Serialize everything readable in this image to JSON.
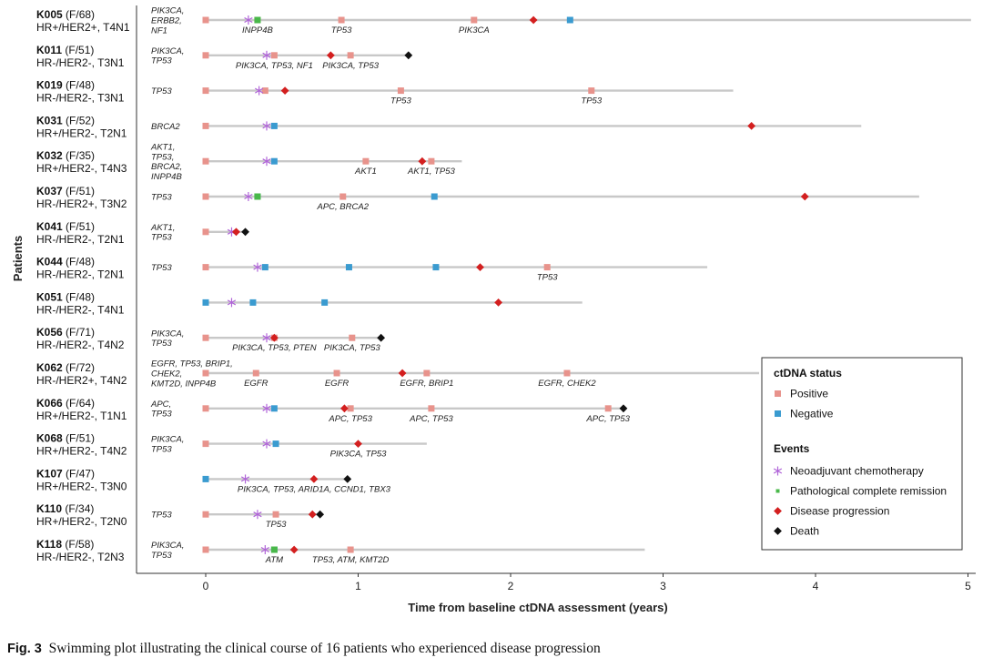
{
  "chart_data": {
    "type": "swimmer",
    "xlabel": "Time from baseline ctDNA assessment (years)",
    "ylabel": "Patients",
    "xlim": [
      -0.45,
      5.05
    ],
    "xticks": [
      0,
      1,
      2,
      3,
      4,
      5
    ],
    "legend": {
      "placement": "bottom-right",
      "status_title": "ctDNA status",
      "status_items": [
        {
          "label": "Positive",
          "color": "#e8938c"
        },
        {
          "label": "Negative",
          "color": "#3a9bd0"
        }
      ],
      "events_title": "Events",
      "event_items": [
        {
          "label": "Neoadjuvant chemotherapy",
          "kind": "chemo",
          "color": "#b064d8"
        },
        {
          "label": "Pathological complete remission",
          "kind": "pcr",
          "color": "#49b84a"
        },
        {
          "label": "Disease progression",
          "kind": "progression",
          "color": "#d31f1f"
        },
        {
          "label": "Death",
          "kind": "death",
          "color": "#111111"
        }
      ]
    },
    "patients": [
      {
        "id": "K005",
        "info": "(F/68)",
        "subtype": "HR+/HER2+, T4N1",
        "end": 5.02,
        "baseline_genes": [
          "PIK3CA,",
          "ERBB2,",
          "NF1"
        ],
        "samples": [
          {
            "t": 0,
            "s": "pos"
          },
          {
            "t": 0.34,
            "s": "pos",
            "label": "INPP4B"
          },
          {
            "t": 0.89,
            "s": "pos",
            "label": "TP53"
          },
          {
            "t": 1.76,
            "s": "pos",
            "label": "PIK3CA"
          },
          {
            "t": 2.39,
            "s": "neg"
          }
        ],
        "events": [
          {
            "t": 0.28,
            "e": "chemo"
          },
          {
            "t": 0.34,
            "e": "pcr"
          },
          {
            "t": 2.15,
            "e": "progression"
          }
        ]
      },
      {
        "id": "K011",
        "info": "(F/51)",
        "subtype": "HR-/HER2-, T3N1",
        "end": 1.33,
        "baseline_genes": [
          "PIK3CA,",
          "TP53"
        ],
        "samples": [
          {
            "t": 0,
            "s": "pos"
          },
          {
            "t": 0.45,
            "s": "pos",
            "label": "PIK3CA, TP53, NF1"
          },
          {
            "t": 0.95,
            "s": "pos",
            "label": "PIK3CA, TP53"
          }
        ],
        "events": [
          {
            "t": 0.4,
            "e": "chemo"
          },
          {
            "t": 0.82,
            "e": "progression"
          },
          {
            "t": 1.33,
            "e": "death"
          }
        ]
      },
      {
        "id": "K019",
        "info": "(F/48)",
        "subtype": "HR-/HER2-, T3N1",
        "end": 3.46,
        "baseline_genes": [
          "TP53"
        ],
        "samples": [
          {
            "t": 0,
            "s": "pos"
          },
          {
            "t": 0.39,
            "s": "pos"
          },
          {
            "t": 1.28,
            "s": "pos",
            "label": "TP53"
          },
          {
            "t": 2.53,
            "s": "pos",
            "label": "TP53"
          }
        ],
        "events": [
          {
            "t": 0.35,
            "e": "chemo"
          },
          {
            "t": 0.52,
            "e": "progression"
          }
        ]
      },
      {
        "id": "K031",
        "info": "(F/52)",
        "subtype": "HR+/HER2-, T2N1",
        "end": 4.3,
        "baseline_genes": [
          "BRCA2"
        ],
        "samples": [
          {
            "t": 0,
            "s": "pos"
          },
          {
            "t": 0.45,
            "s": "neg"
          }
        ],
        "events": [
          {
            "t": 0.4,
            "e": "chemo"
          },
          {
            "t": 3.58,
            "e": "progression"
          }
        ]
      },
      {
        "id": "K032",
        "info": "(F/35)",
        "subtype": "HR+/HER2-, T4N3",
        "end": 1.68,
        "baseline_genes": [
          "AKT1,",
          "TP53,",
          "BRCA2,",
          "INPP4B"
        ],
        "samples": [
          {
            "t": 0,
            "s": "pos"
          },
          {
            "t": 0.45,
            "s": "neg"
          },
          {
            "t": 1.05,
            "s": "pos",
            "label": "AKT1"
          },
          {
            "t": 1.48,
            "s": "pos",
            "label": "AKT1, TP53"
          }
        ],
        "events": [
          {
            "t": 0.4,
            "e": "chemo"
          },
          {
            "t": 1.42,
            "e": "progression"
          }
        ]
      },
      {
        "id": "K037",
        "info": "(F/51)",
        "subtype": "HR-/HER2+, T3N2",
        "end": 4.68,
        "baseline_genes": [
          "TP53"
        ],
        "samples": [
          {
            "t": 0,
            "s": "pos"
          },
          {
            "t": 0.34,
            "s": "neg"
          },
          {
            "t": 0.9,
            "s": "pos",
            "label": "APC, BRCA2"
          },
          {
            "t": 1.5,
            "s": "neg"
          }
        ],
        "events": [
          {
            "t": 0.28,
            "e": "chemo"
          },
          {
            "t": 0.34,
            "e": "pcr"
          },
          {
            "t": 3.93,
            "e": "progression"
          }
        ]
      },
      {
        "id": "K041",
        "info": "(F/51)",
        "subtype": "HR-/HER2-, T2N1",
        "end": 0.26,
        "baseline_genes": [
          "AKT1,",
          "TP53"
        ],
        "samples": [
          {
            "t": 0,
            "s": "pos"
          }
        ],
        "events": [
          {
            "t": 0.17,
            "e": "chemo"
          },
          {
            "t": 0.2,
            "e": "progression"
          },
          {
            "t": 0.26,
            "e": "death"
          }
        ]
      },
      {
        "id": "K044",
        "info": "(F/48)",
        "subtype": "HR-/HER2-, T2N1",
        "end": 3.29,
        "baseline_genes": [
          "TP53"
        ],
        "samples": [
          {
            "t": 0,
            "s": "pos"
          },
          {
            "t": 0.39,
            "s": "neg"
          },
          {
            "t": 0.94,
            "s": "neg"
          },
          {
            "t": 1.51,
            "s": "neg"
          },
          {
            "t": 2.24,
            "s": "pos",
            "label": "TP53"
          }
        ],
        "events": [
          {
            "t": 0.34,
            "e": "chemo"
          },
          {
            "t": 1.8,
            "e": "progression"
          }
        ]
      },
      {
        "id": "K051",
        "info": "(F/48)",
        "subtype": "HR-/HER2-, T4N1",
        "end": 2.47,
        "baseline_genes": [],
        "samples": [
          {
            "t": 0,
            "s": "neg"
          },
          {
            "t": 0.31,
            "s": "neg"
          },
          {
            "t": 0.78,
            "s": "neg"
          }
        ],
        "events": [
          {
            "t": 0.17,
            "e": "chemo"
          },
          {
            "t": 1.92,
            "e": "progression"
          }
        ]
      },
      {
        "id": "K056",
        "info": "(F/71)",
        "subtype": "HR-/HER2-, T4N2",
        "end": 1.15,
        "baseline_genes": [
          "PIK3CA,",
          "TP53"
        ],
        "samples": [
          {
            "t": 0,
            "s": "pos"
          },
          {
            "t": 0.45,
            "s": "pos",
            "label": "PIK3CA, TP53, PTEN"
          },
          {
            "t": 0.96,
            "s": "pos",
            "label": "PIK3CA, TP53"
          }
        ],
        "events": [
          {
            "t": 0.4,
            "e": "chemo"
          },
          {
            "t": 0.45,
            "e": "progression"
          },
          {
            "t": 1.15,
            "e": "death"
          }
        ]
      },
      {
        "id": "K062",
        "info": "(F/72)",
        "subtype": "HR-/HER2+, T4N2",
        "end": 3.63,
        "baseline_genes": [
          "EGFR, TP53, BRIP1,",
          "CHEK2,",
          "KMT2D, INPP4B"
        ],
        "samples": [
          {
            "t": 0,
            "s": "pos"
          },
          {
            "t": 0.33,
            "s": "pos",
            "label": "EGFR"
          },
          {
            "t": 0.86,
            "s": "pos",
            "label": "EGFR"
          },
          {
            "t": 1.45,
            "s": "pos",
            "label": "EGFR, BRIP1"
          },
          {
            "t": 2.37,
            "s": "pos",
            "label": "EGFR, CHEK2"
          }
        ],
        "events": [
          {
            "t": 1.29,
            "e": "progression"
          }
        ]
      },
      {
        "id": "K066",
        "info": "(F/64)",
        "subtype": "HR+/HER2-, T1N1",
        "end": 2.75,
        "baseline_genes": [
          "APC,",
          "TP53"
        ],
        "samples": [
          {
            "t": 0,
            "s": "pos"
          },
          {
            "t": 0.45,
            "s": "neg"
          },
          {
            "t": 0.95,
            "s": "pos",
            "label": "APC, TP53"
          },
          {
            "t": 1.48,
            "s": "pos",
            "label": "APC, TP53"
          },
          {
            "t": 2.64,
            "s": "pos",
            "label": "APC, TP53"
          }
        ],
        "events": [
          {
            "t": 0.4,
            "e": "chemo"
          },
          {
            "t": 0.91,
            "e": "progression"
          },
          {
            "t": 2.74,
            "e": "death"
          }
        ]
      },
      {
        "id": "K068",
        "info": "(F/51)",
        "subtype": "HR+/HER2-, T4N2",
        "end": 1.45,
        "baseline_genes": [
          "PIK3CA,",
          "TP53"
        ],
        "samples": [
          {
            "t": 0,
            "s": "pos"
          },
          {
            "t": 0.46,
            "s": "neg"
          }
        ],
        "events": [
          {
            "t": 0.4,
            "e": "chemo"
          },
          {
            "t": 1.0,
            "e": "progression",
            "label": "PIK3CA, TP53"
          }
        ]
      },
      {
        "id": "K107",
        "info": "(F/47)",
        "subtype": "HR+/HER2-, T3N0",
        "end": 0.93,
        "baseline_genes": [],
        "samples": [
          {
            "t": 0,
            "s": "neg"
          }
        ],
        "events": [
          {
            "t": 0.26,
            "e": "chemo"
          },
          {
            "t": 0.71,
            "e": "progression",
            "label": "PIK3CA, TP53, ARID1A, CCND1, TBX3"
          },
          {
            "t": 0.93,
            "e": "death"
          }
        ]
      },
      {
        "id": "K110",
        "info": "(F/34)",
        "subtype": "HR+/HER2-, T2N0",
        "end": 0.75,
        "baseline_genes": [
          "TP53"
        ],
        "samples": [
          {
            "t": 0,
            "s": "pos"
          },
          {
            "t": 0.46,
            "s": "pos",
            "label": "TP53"
          }
        ],
        "events": [
          {
            "t": 0.34,
            "e": "chemo"
          },
          {
            "t": 0.7,
            "e": "progression"
          },
          {
            "t": 0.75,
            "e": "death"
          }
        ]
      },
      {
        "id": "K118",
        "info": "(F/58)",
        "subtype": "HR-/HER2-, T2N3",
        "end": 2.88,
        "baseline_genes": [
          "PIK3CA,",
          "TP53"
        ],
        "samples": [
          {
            "t": 0,
            "s": "pos"
          },
          {
            "t": 0.45,
            "s": "neg",
            "label": "ATM"
          },
          {
            "t": 0.95,
            "s": "pos",
            "label": "TP53, ATM, KMT2D"
          }
        ],
        "events": [
          {
            "t": 0.39,
            "e": "chemo"
          },
          {
            "t": 0.45,
            "e": "pcr"
          },
          {
            "t": 0.58,
            "e": "progression"
          }
        ]
      }
    ]
  },
  "caption": {
    "label": "Fig. 3",
    "text": "Swimming plot illustrating the clinical course of 16 patients who experienced disease progression"
  }
}
